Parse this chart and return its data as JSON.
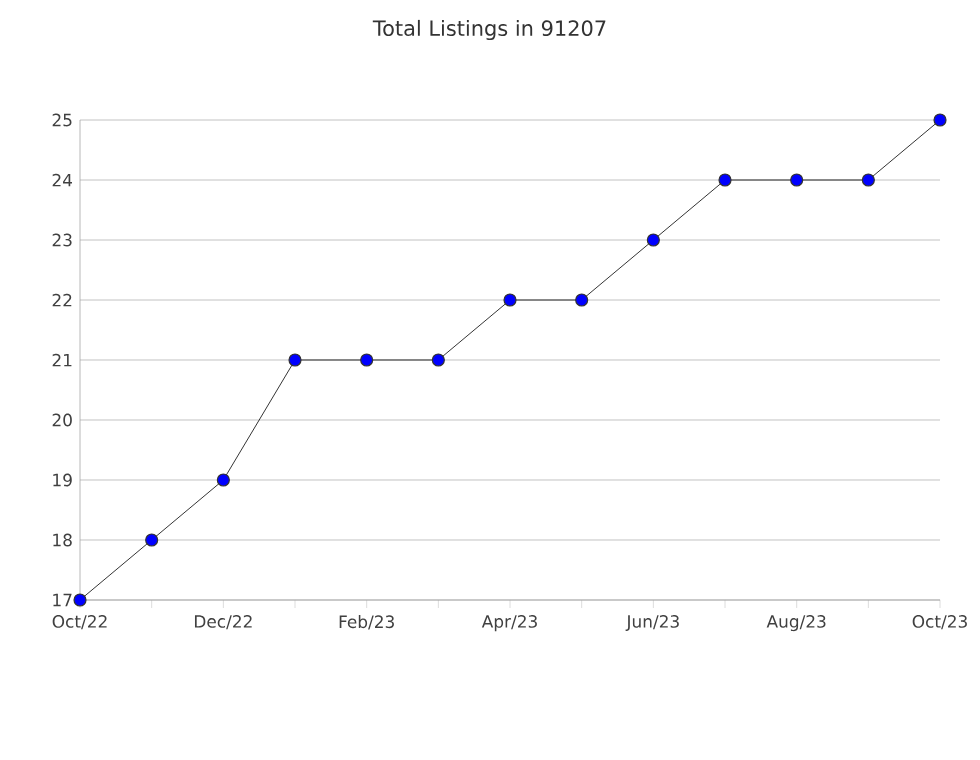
{
  "chart_data": {
    "type": "line",
    "title": "Total Listings in 91207",
    "x": [
      "2022-10",
      "2022-11",
      "2022-12",
      "2023-01",
      "2023-02",
      "2023-03",
      "2023-04",
      "2023-05",
      "2023-06",
      "2023-07",
      "2023-08",
      "2023-09",
      "2023-10"
    ],
    "series": [
      {
        "color": "#0000ff",
        "values": [
          17,
          18,
          19,
          21,
          21,
          21,
          22,
          22,
          23,
          24,
          24,
          24,
          25
        ]
      }
    ],
    "xlim": [
      "2022-10",
      "2023-10"
    ],
    "xticks": [
      {
        "value": "2022-10",
        "label": "Oct/22"
      },
      {
        "value": "2022-11",
        "label": null
      },
      {
        "value": "2022-12",
        "label": "Dec/22"
      },
      {
        "value": "2023-01",
        "label": null
      },
      {
        "value": "2023-02",
        "label": "Feb/23"
      },
      {
        "value": "2023-03",
        "label": null
      },
      {
        "value": "2023-04",
        "label": "Apr/23"
      },
      {
        "value": "2023-05",
        "label": null
      },
      {
        "value": "2023-06",
        "label": "Jun/23"
      },
      {
        "value": "2023-07",
        "label": null
      },
      {
        "value": "2023-08",
        "label": "Aug/23"
      },
      {
        "value": "2023-09",
        "label": null
      },
      {
        "value": "2023-10",
        "label": "Oct/23"
      }
    ],
    "ylim": [
      17,
      25
    ],
    "yticks": [
      17,
      18,
      19,
      20,
      21,
      22,
      23,
      24,
      25
    ],
    "grid": "y",
    "marker": "circle",
    "line_style": "solid"
  }
}
